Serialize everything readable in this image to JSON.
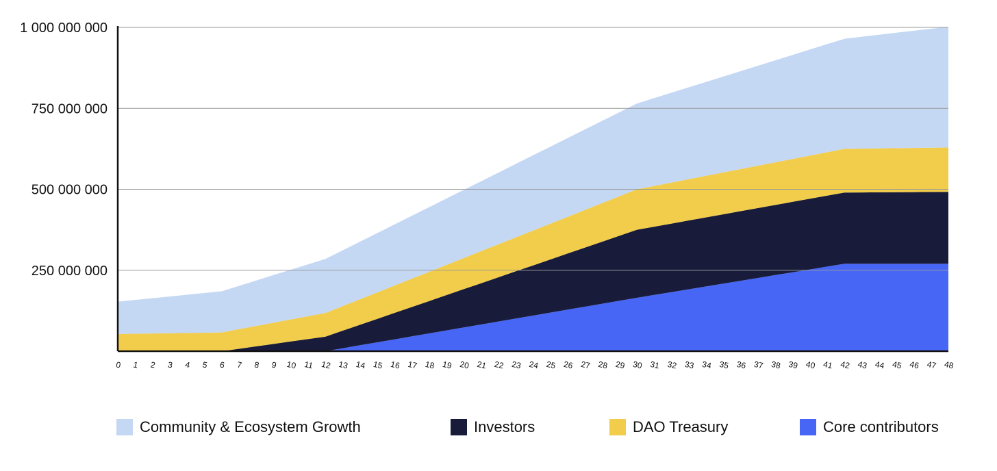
{
  "chart_data": {
    "type": "area",
    "stacked": true,
    "title": "",
    "xlabel": "",
    "ylabel": "",
    "x": [
      0,
      1,
      2,
      3,
      4,
      5,
      6,
      7,
      8,
      9,
      10,
      11,
      12,
      13,
      14,
      15,
      16,
      17,
      18,
      19,
      20,
      21,
      22,
      23,
      24,
      25,
      26,
      27,
      28,
      29,
      30,
      31,
      32,
      33,
      34,
      35,
      36,
      37,
      38,
      39,
      40,
      41,
      42,
      43,
      44,
      45,
      46,
      47,
      48
    ],
    "ylim": [
      0,
      1000000000
    ],
    "yticks": [
      250000000,
      500000000,
      750000000,
      1000000000
    ],
    "ytick_labels": [
      "250 000 000",
      "500 000 000",
      "750 000 000",
      "1 000 000 000"
    ],
    "grid": true,
    "legend_position": "bottom",
    "series": [
      {
        "name": "Core contributors",
        "color": "#4766f5",
        "keypoints": [
          [
            0,
            0
          ],
          [
            12,
            0
          ],
          [
            30,
            165000000
          ],
          [
            42,
            270000000
          ],
          [
            48,
            270000000
          ]
        ]
      },
      {
        "name": "Investors",
        "color": "#181c3a",
        "keypoints": [
          [
            0,
            0
          ],
          [
            6,
            0
          ],
          [
            12,
            45000000
          ],
          [
            30,
            210000000
          ],
          [
            42,
            220000000
          ],
          [
            48,
            222000000
          ]
        ]
      },
      {
        "name": "DAO Treasury",
        "color": "#f2cc4b",
        "keypoints": [
          [
            0,
            53000000
          ],
          [
            6,
            58000000
          ],
          [
            12,
            73000000
          ],
          [
            30,
            125000000
          ],
          [
            42,
            135000000
          ],
          [
            48,
            137000000
          ]
        ]
      },
      {
        "name": "Community & Ecosystem Growth",
        "color": "#c4d8f4",
        "keypoints": [
          [
            0,
            100000000
          ],
          [
            6,
            127000000
          ],
          [
            12,
            167000000
          ],
          [
            30,
            265000000
          ],
          [
            42,
            340000000
          ],
          [
            48,
            373000000
          ]
        ]
      }
    ],
    "legend": [
      {
        "label": "Community & Ecosystem Growth",
        "color": "#c4d8f4"
      },
      {
        "label": "Investors",
        "color": "#181c3a"
      },
      {
        "label": "DAO Treasury",
        "color": "#f2cc4b"
      },
      {
        "label": "Core contributors",
        "color": "#4766f5"
      }
    ]
  }
}
